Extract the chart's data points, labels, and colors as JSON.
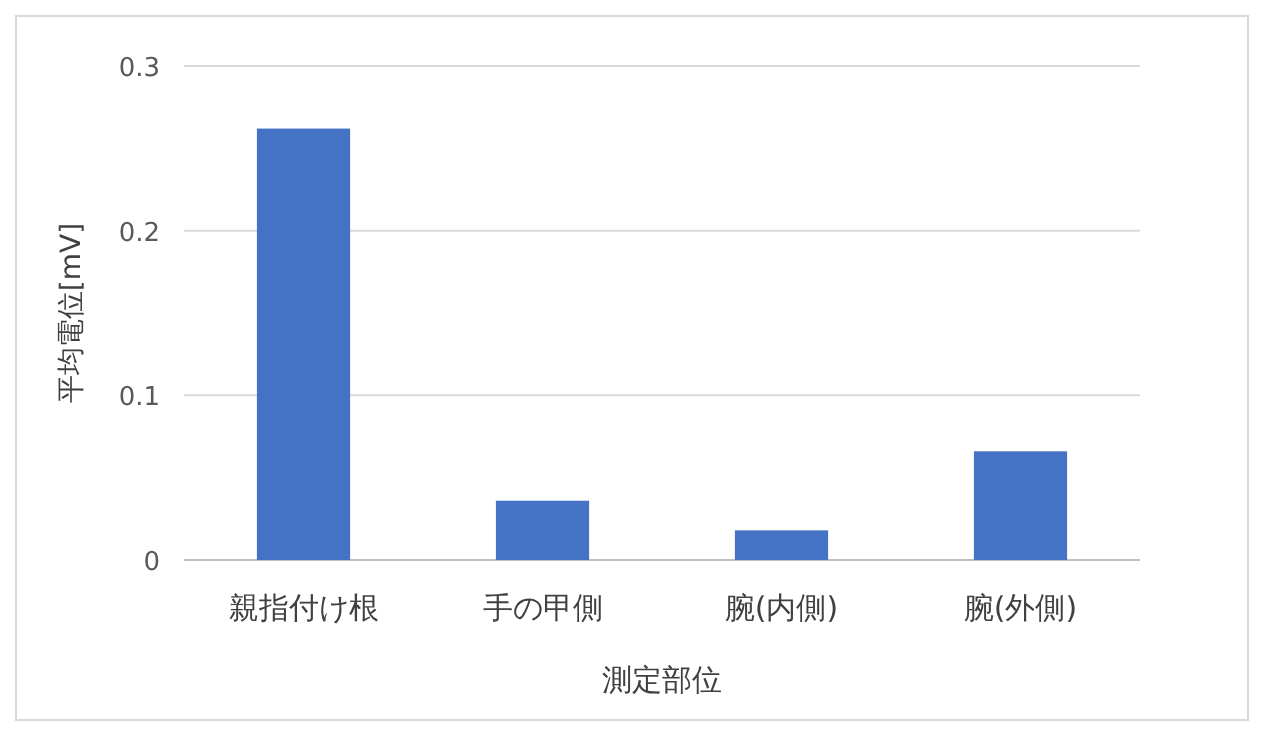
{
  "chart_data": {
    "type": "bar",
    "xlabel": "測定部位",
    "ylabel": "平均電位[mV]",
    "categories": [
      "親指付け根",
      "手の甲側",
      "腕(内側)",
      "腕(外側)"
    ],
    "values": [
      0.262,
      0.036,
      0.018,
      0.066
    ],
    "color": "#4472c4",
    "ylim": [
      0,
      0.3
    ],
    "yticks": [
      0,
      0.1,
      0.2,
      0.3
    ],
    "grid": "y"
  }
}
